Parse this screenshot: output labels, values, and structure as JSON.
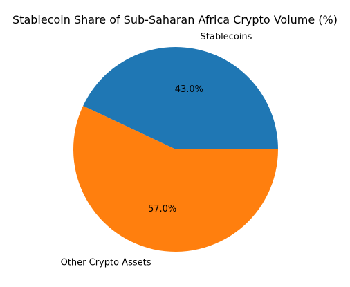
{
  "chart_data": {
    "type": "pie",
    "title": "Stablecoin Share of Sub-Saharan Africa Crypto Volume (%)",
    "categories": [
      "Stablecoins",
      "Other Crypto Assets"
    ],
    "values": [
      43.0,
      57.0
    ],
    "value_labels": [
      "43.0%",
      "57.0%"
    ],
    "colors": [
      "#1f77b4",
      "#ff7f0e"
    ],
    "start_angle_deg": 0,
    "direction": "counterclockwise",
    "legend": "none"
  }
}
